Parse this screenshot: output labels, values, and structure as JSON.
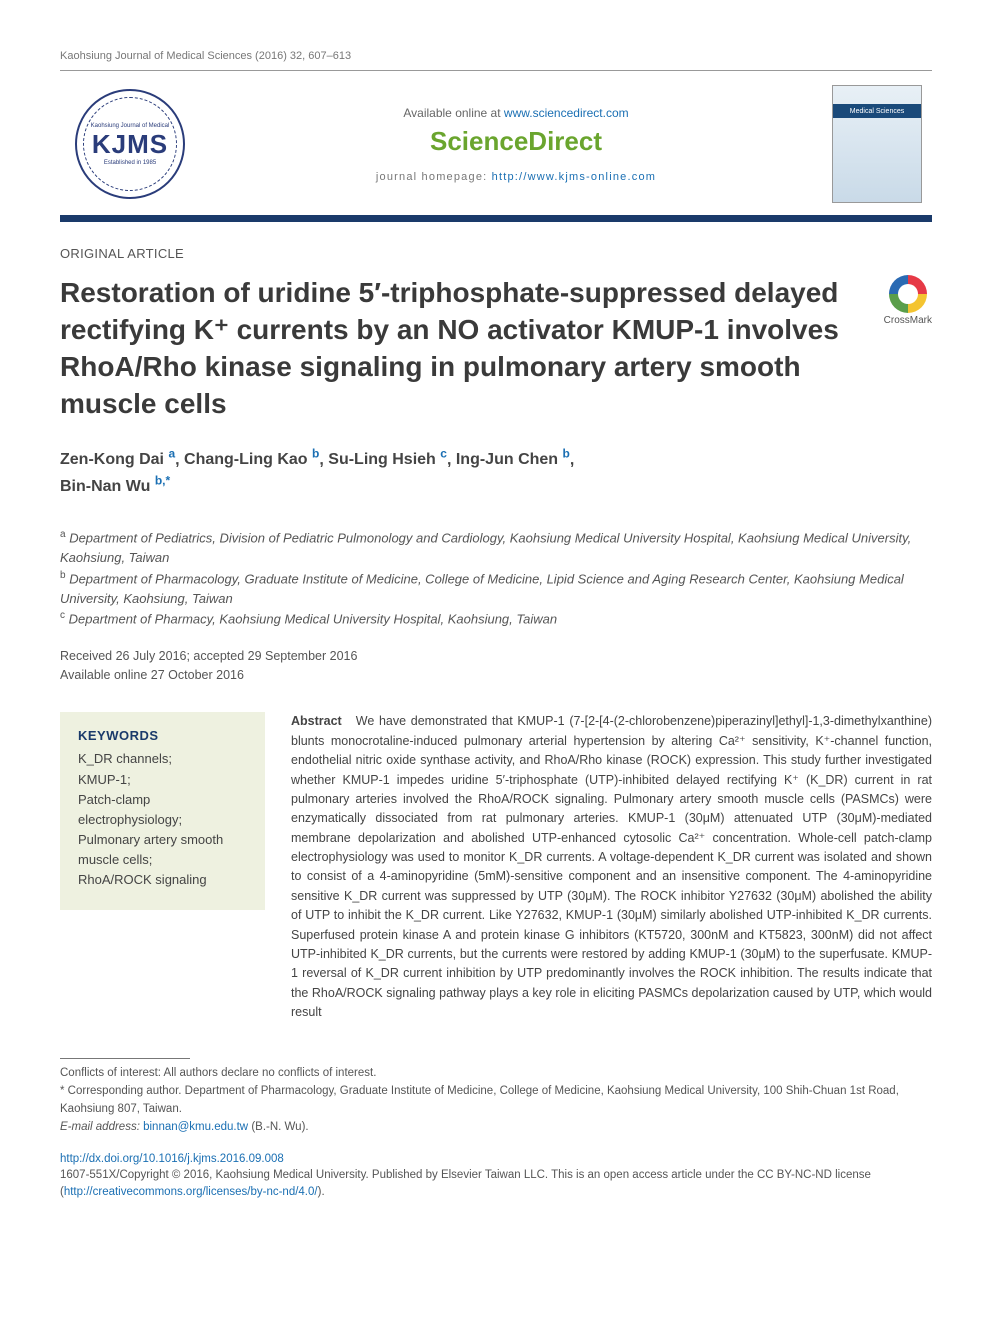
{
  "header": {
    "journal_ref": "Kaohsiung Journal of Medical Sciences (2016) 32, 607–613",
    "available_prefix": "Available online at ",
    "sd_url": "www.sciencedirect.com",
    "sd_logo": "ScienceDirect",
    "homepage_prefix": "journal homepage: ",
    "homepage_url": "http://www.kjms-online.com",
    "logo_text": "KJMS",
    "logo_topline": "Kaohsiung Journal of Medical",
    "logo_bottomline": "Established in 1985",
    "cover_label": "Medical Sciences"
  },
  "article_type": "ORIGINAL ARTICLE",
  "title": "Restoration of uridine 5′-triphosphate-suppressed delayed rectifying K⁺ currents by an NO activator KMUP-1 involves RhoA/Rho kinase signaling in pulmonary artery smooth muscle cells",
  "crossmark": "CrossMark",
  "authors": [
    {
      "name": "Zen-Kong Dai",
      "aff": "a"
    },
    {
      "name": "Chang-Ling Kao",
      "aff": "b"
    },
    {
      "name": "Su-Ling Hsieh",
      "aff": "c"
    },
    {
      "name": "Ing-Jun Chen",
      "aff": "b"
    },
    {
      "name": "Bin-Nan Wu",
      "aff": "b,*"
    }
  ],
  "affiliations": {
    "a": "Department of Pediatrics, Division of Pediatric Pulmonology and Cardiology, Kaohsiung Medical University Hospital, Kaohsiung Medical University, Kaohsiung, Taiwan",
    "b": "Department of Pharmacology, Graduate Institute of Medicine, College of Medicine, Lipid Science and Aging Research Center, Kaohsiung Medical University, Kaohsiung, Taiwan",
    "c": "Department of Pharmacy, Kaohsiung Medical University Hospital, Kaohsiung, Taiwan"
  },
  "dates": {
    "received_accepted": "Received 26 July 2016; accepted 29 September 2016",
    "online": "Available online 27 October 2016"
  },
  "keywords_label": "KEYWORDS",
  "keywords": [
    "K_DR channels;",
    "KMUP-1;",
    "Patch-clamp electrophysiology;",
    "Pulmonary artery smooth muscle cells;",
    "RhoA/ROCK signaling"
  ],
  "abstract_label": "Abstract",
  "abstract": "We have demonstrated that KMUP-1 (7-[2-[4-(2-chlorobenzene)piperazinyl]ethyl]-1,3-dimethylxanthine) blunts monocrotaline-induced pulmonary arterial hypertension by altering Ca²⁺ sensitivity, K⁺-channel function, endothelial nitric oxide synthase activity, and RhoA/Rho kinase (ROCK) expression. This study further investigated whether KMUP-1 impedes uridine 5′-triphosphate (UTP)-inhibited delayed rectifying K⁺ (K_DR) current in rat pulmonary arteries involved the RhoA/ROCK signaling. Pulmonary artery smooth muscle cells (PASMCs) were enzymatically dissociated from rat pulmonary arteries. KMUP-1 (30μM) attenuated UTP (30μM)-mediated membrane depolarization and abolished UTP-enhanced cytosolic Ca²⁺ concentration. Whole-cell patch-clamp electrophysiology was used to monitor K_DR currents. A voltage-dependent K_DR current was isolated and shown to consist of a 4-aminopyridine (5mM)-sensitive component and an insensitive component. The 4-aminopyridine sensitive K_DR current was suppressed by UTP (30μM). The ROCK inhibitor Y27632 (30μM) abolished the ability of UTP to inhibit the K_DR current. Like Y27632, KMUP-1 (30μM) similarly abolished UTP-inhibited K_DR currents. Superfused protein kinase A and protein kinase G inhibitors (KT5720, 300nM and KT5823, 300nM) did not affect UTP-inhibited K_DR currents, but the currents were restored by adding KMUP-1 (30μM) to the superfusate. KMUP-1 reversal of K_DR current inhibition by UTP predominantly involves the ROCK inhibition. The results indicate that the RhoA/ROCK signaling pathway plays a key role in eliciting PASMCs depolarization caused by UTP, which would result",
  "footer": {
    "conflicts": "Conflicts of interest: All authors declare no conflicts of interest.",
    "corresponding": "* Corresponding author. Department of Pharmacology, Graduate Institute of Medicine, College of Medicine, Kaohsiung Medical University, 100 Shih-Chuan 1st Road, Kaohsiung 807, Taiwan.",
    "email_label": "E-mail address:",
    "email": "binnan@kmu.edu.tw",
    "email_author": "(B.-N. Wu).",
    "doi": "http://dx.doi.org/10.1016/j.kjms.2016.09.008",
    "copyright": "1607-551X/Copyright © 2016, Kaohsiung Medical University. Published by Elsevier Taiwan LLC. This is an open access article under the CC BY-NC-ND license (",
    "license_url": "http://creativecommons.org/licenses/by-nc-nd/4.0/",
    "copyright_end": ")."
  },
  "colors": {
    "rule": "#1a3a6a",
    "link": "#1a6fb3",
    "sd_green": "#6aa52e",
    "kw_bg": "#eef1e0"
  }
}
